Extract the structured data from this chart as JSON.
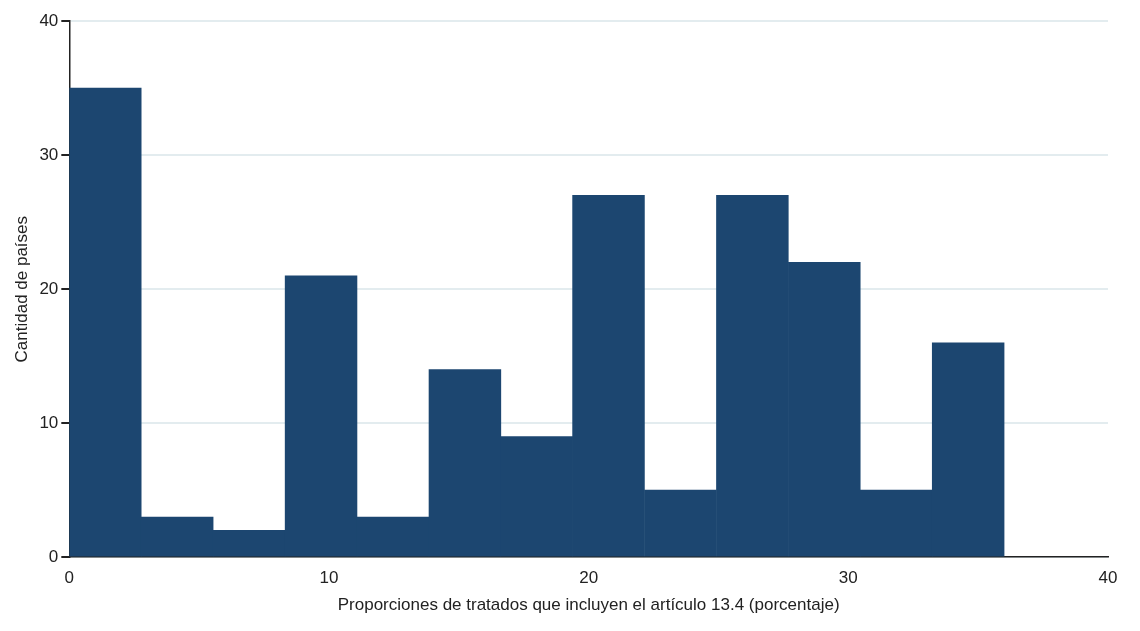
{
  "chart_data": {
    "type": "histogram",
    "xlabel": "Proporciones de tratados que incluyen el artículo 13.4 (porcentaje)",
    "ylabel": "Cantidad de países",
    "bins": [
      0,
      2.77,
      5.54,
      8.31,
      11.08,
      13.85,
      16.62,
      19.38,
      22.15,
      24.92,
      27.69,
      30.46,
      33.23,
      36
    ],
    "values": [
      35,
      3,
      2,
      21,
      3,
      14,
      9,
      27,
      5,
      27,
      22,
      5,
      16
    ],
    "color": "#1c4670",
    "xlim": [
      0,
      40
    ],
    "xticks": [
      0,
      10,
      20,
      30,
      40
    ],
    "ylim": [
      0,
      40
    ],
    "yticks": [
      0,
      10,
      20,
      30,
      40
    ],
    "grid": "y",
    "legend": false
  }
}
